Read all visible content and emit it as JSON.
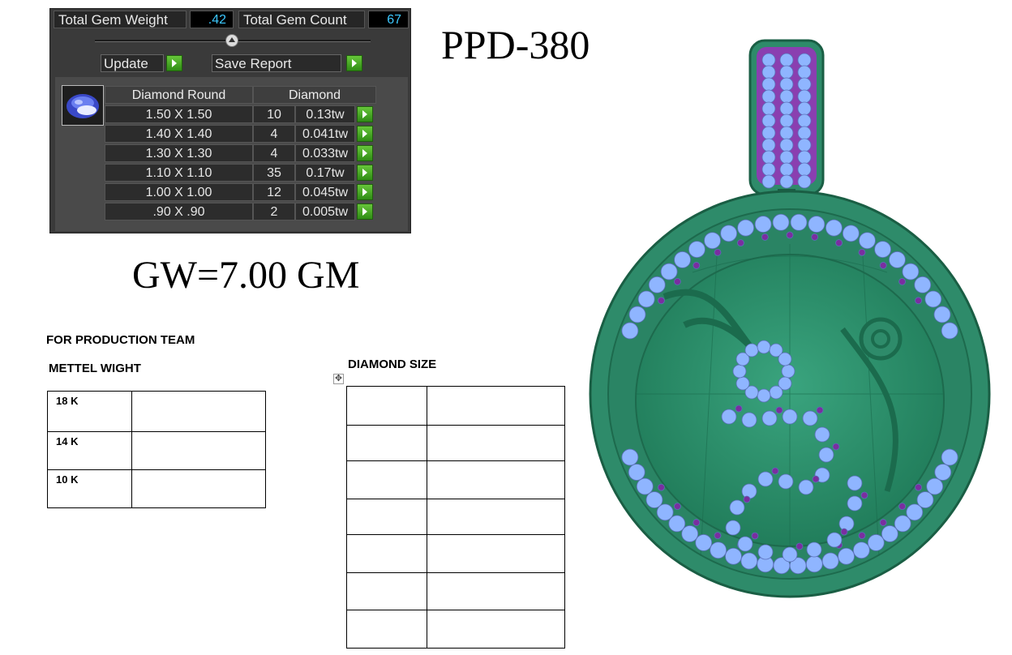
{
  "gem_panel": {
    "total_weight_label": "Total Gem Weight",
    "total_weight_value": ".42",
    "total_count_label": "Total Gem Count",
    "total_count_value": "67",
    "update_label": "Update",
    "save_report_label": "Save Report",
    "table": {
      "header_shape": "Diamond Round",
      "header_material": "Diamond",
      "rows": [
        {
          "size": "1.50 X 1.50",
          "count": "10",
          "weight": "0.13tw"
        },
        {
          "size": "1.40 X 1.40",
          "count": "4",
          "weight": "0.041tw"
        },
        {
          "size": "1.30 X 1.30",
          "count": "4",
          "weight": "0.033tw"
        },
        {
          "size": "1.10 X 1.10",
          "count": "35",
          "weight": "0.17tw"
        },
        {
          "size": "1.00 X 1.00",
          "count": "12",
          "weight": "0.045tw"
        },
        {
          "size": ".90 X .90",
          "count": "2",
          "weight": "0.005tw"
        }
      ]
    }
  },
  "model_code": "PPD-380",
  "gross_weight": "GW=7.00 GM",
  "production_heading": "FOR PRODUCTION TEAM",
  "metal_weight_heading": "METTEL WIGHT",
  "metal_rows": [
    "18 K",
    "14 K",
    "10 K"
  ],
  "diamond_size_heading": "DIAMOND SIZE",
  "diamond_size_row_count": 7,
  "colors": {
    "metal_green": "#2e8b6a",
    "stone_blue": "#8fb5ff",
    "stone_purple": "#7a2ea0",
    "panel_bg": "#3a3a3a",
    "value_cyan": "#3cc8ff",
    "go_green": "#4aa82a"
  }
}
